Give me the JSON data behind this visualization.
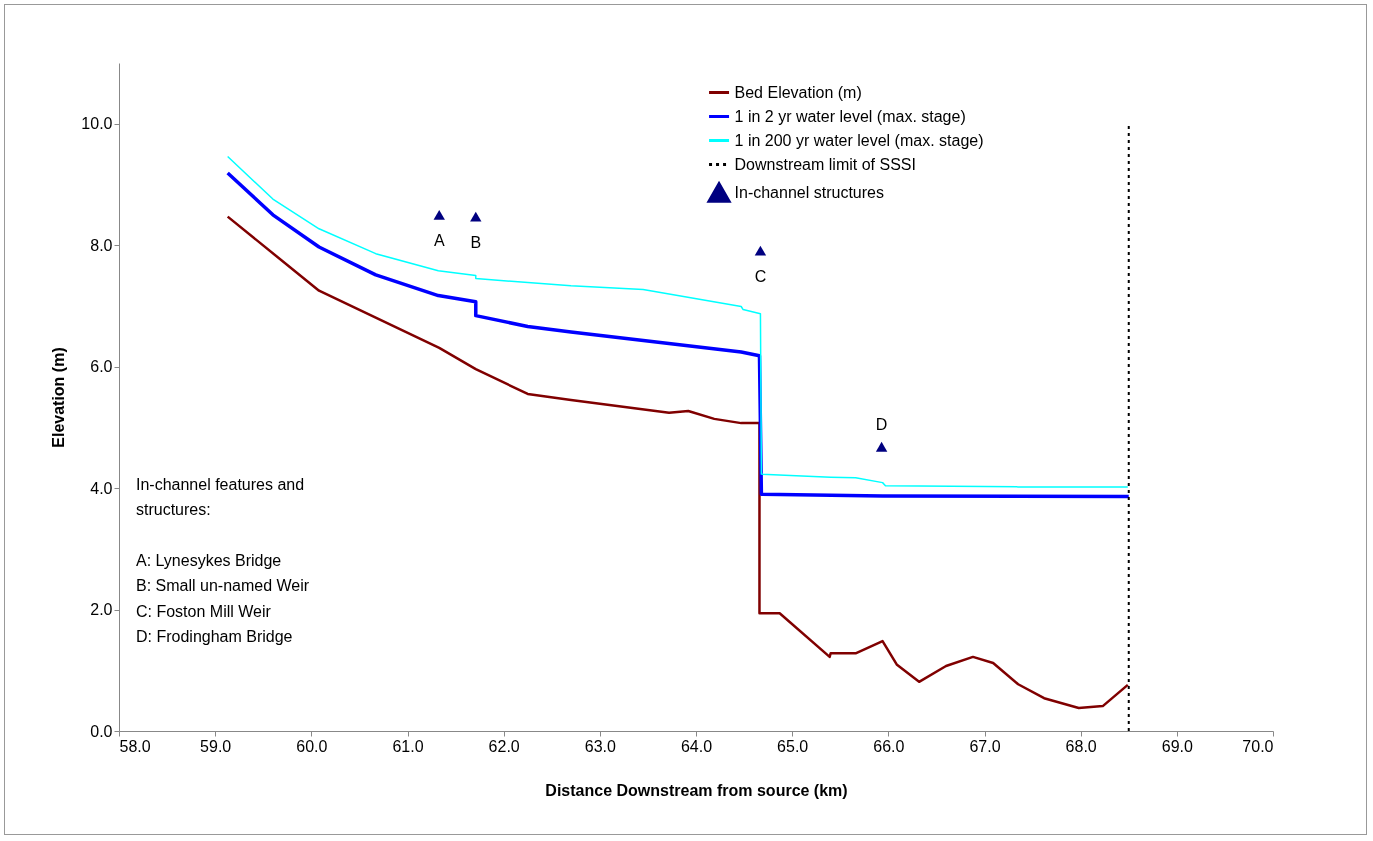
{
  "chart_data": {
    "type": "line",
    "xlabel": "Distance Downstream from source (km)",
    "ylabel": "Elevation (m)",
    "xlim": [
      58,
      70
    ],
    "xticks": [
      {
        "value": 58,
        "label": "58.0"
      },
      {
        "value": 59,
        "label": "59.0"
      },
      {
        "value": 60,
        "label": "60.0"
      },
      {
        "value": 61,
        "label": "61.0"
      },
      {
        "value": 62,
        "label": "62.0"
      },
      {
        "value": 63,
        "label": "63.0"
      },
      {
        "value": 64,
        "label": "64.0"
      },
      {
        "value": 65,
        "label": "65.0"
      },
      {
        "value": 66,
        "label": "66.0"
      },
      {
        "value": 67,
        "label": "67.0"
      },
      {
        "value": 68,
        "label": "68.0"
      },
      {
        "value": 69,
        "label": "69.0"
      },
      {
        "value": 70,
        "label": "70.0"
      }
    ],
    "ylim": [
      0,
      11
    ],
    "yticks": [
      {
        "value": 0,
        "label": "0.0"
      },
      {
        "value": 2,
        "label": "2.0"
      },
      {
        "value": 4,
        "label": "4.0"
      },
      {
        "value": 6,
        "label": "6.0"
      },
      {
        "value": 8,
        "label": "8.0"
      },
      {
        "value": 10,
        "label": "10.0"
      }
    ],
    "grid": false,
    "legend": "top right",
    "series": [
      {
        "name": "Bed Elevation (m)",
        "color": "#800000",
        "line_style": "solid",
        "x": [
          59.13,
          60.08,
          61.33,
          61.71,
          62.25,
          62.7,
          63.72,
          63.92,
          64.19,
          64.47,
          64.66,
          64.66,
          64.87,
          65.39,
          65.4,
          65.66,
          65.94,
          66.09,
          66.32,
          66.6,
          66.88,
          67.09,
          67.35,
          67.62,
          67.98,
          68.23,
          68.49
        ],
        "values": [
          8.47,
          7.25,
          6.31,
          5.96,
          5.55,
          5.45,
          5.24,
          5.27,
          5.14,
          5.07,
          5.07,
          1.94,
          1.94,
          1.22,
          1.28,
          1.28,
          1.48,
          1.09,
          0.81,
          1.07,
          1.22,
          1.12,
          0.77,
          0.54,
          0.38,
          0.41,
          0.76
        ]
      },
      {
        "name": "1 in 2 yr water level (max. stage)",
        "color": "#0000ff",
        "line_style": "solid",
        "x": [
          59.13,
          59.6,
          60.08,
          60.67,
          61.32,
          61.71,
          61.71,
          62.25,
          62.7,
          64.47,
          64.66,
          64.68,
          65.94,
          68.5
        ],
        "values": [
          9.19,
          8.5,
          7.97,
          7.51,
          7.17,
          7.07,
          6.84,
          6.66,
          6.57,
          6.24,
          6.18,
          3.9,
          3.87,
          3.86
        ]
      },
      {
        "name": "1 in 200 yr water level (max. stage)",
        "color": "#00ffff",
        "line_style": "solid",
        "x": [
          59.13,
          59.6,
          60.08,
          60.67,
          61.32,
          61.71,
          61.71,
          62.7,
          63.45,
          64.47,
          64.49,
          64.67,
          64.68,
          65.4,
          65.66,
          65.94,
          65.97,
          67.35,
          68.49
        ],
        "values": [
          9.46,
          8.76,
          8.27,
          7.86,
          7.58,
          7.5,
          7.45,
          7.33,
          7.27,
          6.99,
          6.94,
          6.87,
          4.23,
          4.18,
          4.17,
          4.09,
          4.04,
          4.02,
          4.02
        ]
      },
      {
        "name": "Downstream limit of SSSI",
        "color": "#000000",
        "line_style": "dotted",
        "x": [
          68.5,
          68.5
        ],
        "values": [
          0,
          10
        ]
      },
      {
        "name": "In-channel structures",
        "type": "scatter",
        "marker": "triangle",
        "color": "#000080",
        "x": [
          61.33,
          61.71,
          64.67,
          65.93
        ],
        "values": [
          8.5,
          8.47,
          7.91,
          4.68
        ]
      }
    ],
    "annotations": [
      {
        "text": "A",
        "x": 61.33,
        "y": 8.5
      },
      {
        "text": "B",
        "x": 61.71,
        "y": 8.47
      },
      {
        "text": "C",
        "x": 64.67,
        "y": 7.91
      },
      {
        "text": "D",
        "x": 65.93,
        "y": 4.68
      },
      "In-channel features and structures:",
      "A: Lynesykes Bridge",
      "B: Small un-named Weir",
      "C: Foston Mill Weir",
      "D: Frodingham Bridge"
    ]
  }
}
